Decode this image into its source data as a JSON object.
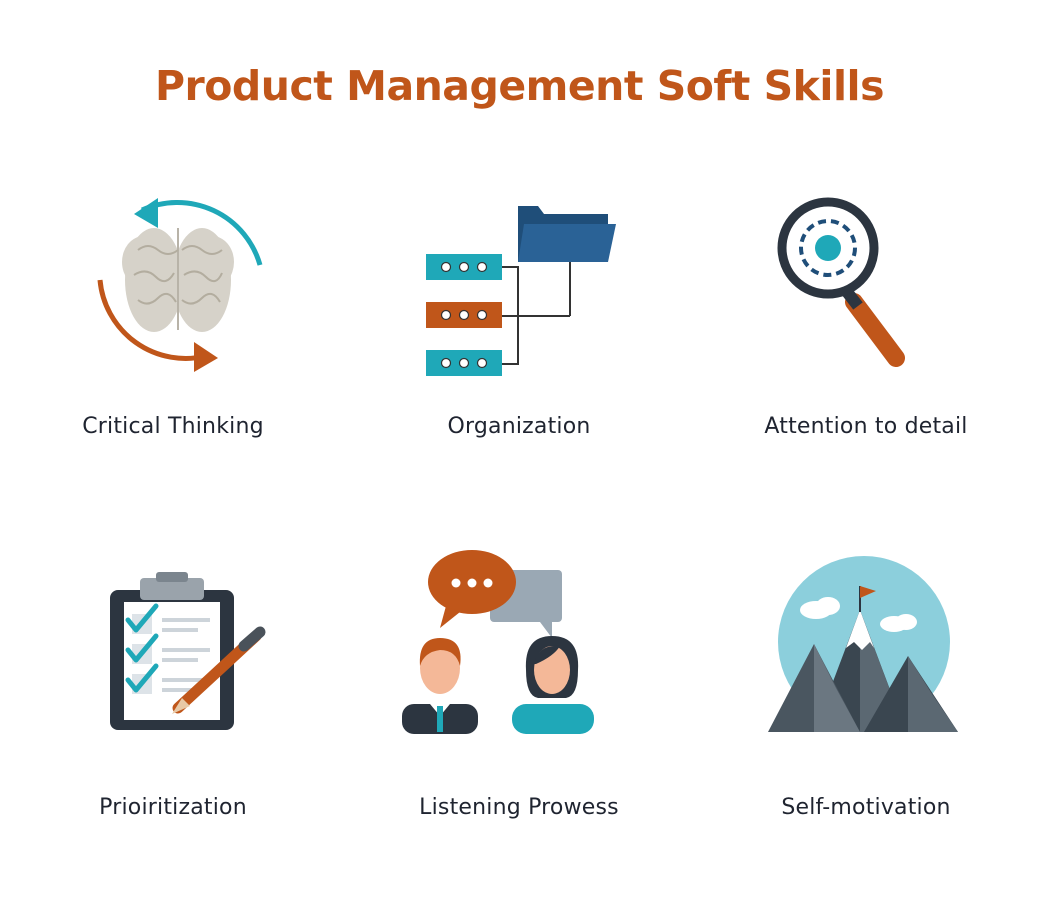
{
  "title": "Product Management Soft Skills",
  "colors": {
    "accent": "#c0561a",
    "teal": "#1fa8b8",
    "navy": "#1f4e79",
    "dark": "#3a4650",
    "text": "#1f2430"
  },
  "skills": [
    {
      "label": "Critical Thinking",
      "icon": "brain-icon"
    },
    {
      "label": "Organization",
      "icon": "folder-server-icon"
    },
    {
      "label": "Attention to detail",
      "icon": "magnifier-icon"
    },
    {
      "label": "Prioiritization",
      "icon": "clipboard-icon"
    },
    {
      "label": "Listening Prowess",
      "icon": "conversation-icon"
    },
    {
      "label": "Self-motivation",
      "icon": "mountain-icon"
    }
  ]
}
